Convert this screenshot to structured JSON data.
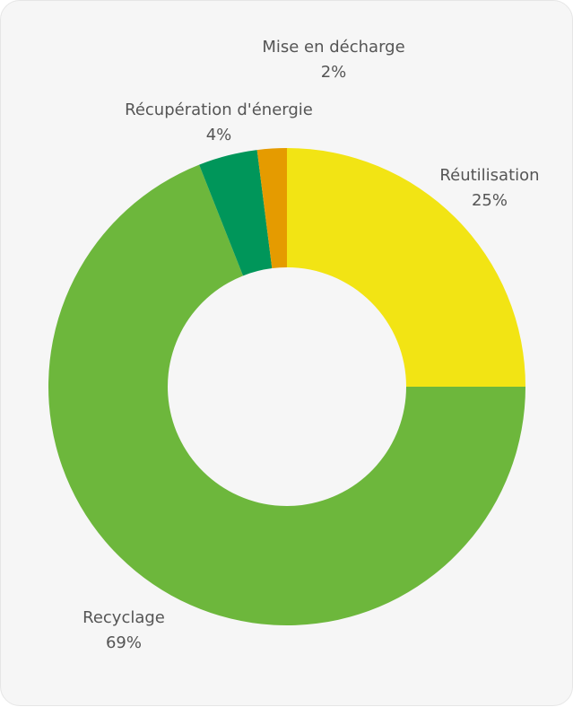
{
  "chart_data": {
    "type": "donut",
    "categories": [
      "Réutilisation",
      "Recyclage",
      "Récupération d'énergie",
      "Mise en décharge"
    ],
    "values": [
      25,
      69,
      4,
      2
    ],
    "value_labels": [
      "25%",
      "69%",
      "4%",
      "2%"
    ],
    "colors": [
      "#f2e414",
      "#6db73c",
      "#00965a",
      "#e59b00"
    ]
  }
}
